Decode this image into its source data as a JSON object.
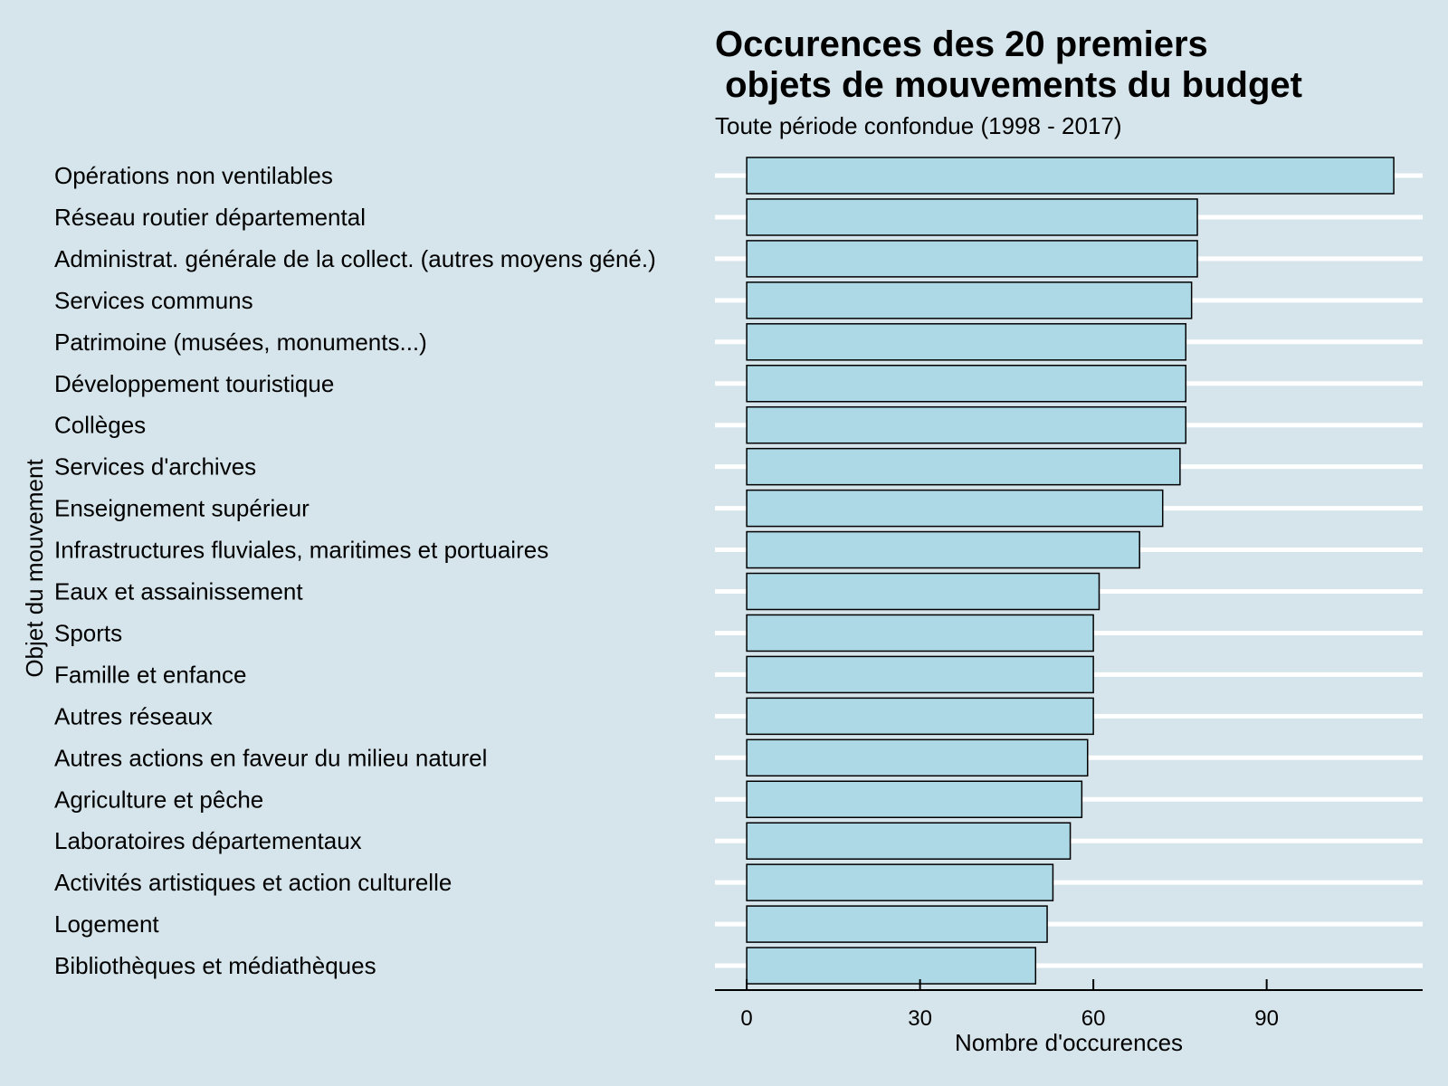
{
  "chart_data": {
    "type": "bar",
    "orientation": "horizontal",
    "title": [
      "Occurences des 20 premiers",
      " objets de mouvements du budget"
    ],
    "subtitle": "Toute période confondue (1998 - 2017)",
    "xlabel": "Nombre d'occurences",
    "ylabel": "Objet du mouvement",
    "xlim": [
      -5.5,
      117
    ],
    "xticks": [
      0,
      30,
      60,
      90
    ],
    "grid": "horizontal-major",
    "legend": "none",
    "colors": {
      "background": "#d6e5ec",
      "bar_fill": "#add8e6",
      "bar_stroke": "#000000",
      "grid": "#ffffff"
    },
    "categories": [
      "Opérations non ventilables",
      "Réseau routier départemental",
      "Administrat. générale de la collect. (autres moyens géné.)",
      "Services communs",
      "Patrimoine (musées, monuments...)",
      "Développement touristique",
      "Collèges",
      "Services d'archives",
      "Enseignement supérieur",
      "Infrastructures fluviales, maritimes et portuaires",
      "Eaux et assainissement",
      "Sports",
      "Famille et enfance",
      "Autres réseaux",
      "Autres actions en faveur du milieu naturel",
      "Agriculture et pêche",
      "Laboratoires départementaux",
      "Activités artistiques et action culturelle",
      "Logement",
      "Bibliothèques et médiathèques"
    ],
    "values": [
      112,
      78,
      78,
      77,
      76,
      76,
      76,
      75,
      72,
      68,
      61,
      60,
      60,
      60,
      59,
      58,
      56,
      53,
      52,
      50
    ]
  }
}
